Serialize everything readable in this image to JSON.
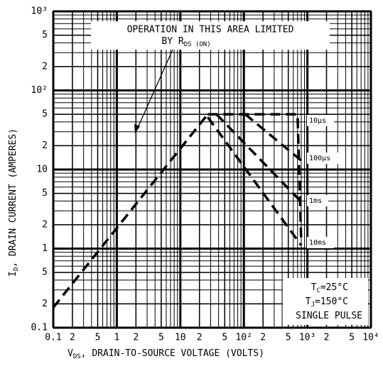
{
  "chart_data": {
    "type": "line",
    "xscale": "log",
    "yscale": "log",
    "grid": true,
    "minor_grid": true,
    "xlim": [
      0.1,
      10000
    ],
    "ylim": [
      0.1,
      1000
    ],
    "xticks": [
      0.1,
      {
        "value": 0.2,
        "label": "2"
      },
      {
        "value": 0.5,
        "label": "5"
      },
      1,
      {
        "value": 2,
        "label": "2"
      },
      {
        "value": 5,
        "label": "5"
      },
      10,
      {
        "value": 20,
        "label": "2"
      },
      {
        "value": 50,
        "label": "5"
      },
      {
        "value": 100,
        "label": "10²"
      },
      {
        "value": 200,
        "label": "2"
      },
      {
        "value": 500,
        "label": "5"
      },
      {
        "value": 1000,
        "label": "10³"
      },
      {
        "value": 2000,
        "label": "2"
      },
      {
        "value": 5000,
        "label": "5"
      },
      {
        "value": 10000,
        "label": "10⁴"
      }
    ],
    "yticks": [
      0.1,
      {
        "value": 0.2,
        "label": "2"
      },
      {
        "value": 0.5,
        "label": "5"
      },
      1,
      {
        "value": 2,
        "label": "2"
      },
      {
        "value": 5,
        "label": "5"
      },
      10,
      {
        "value": 20,
        "label": "2"
      },
      {
        "value": 50,
        "label": "5"
      },
      {
        "value": 100,
        "label": "10²"
      },
      {
        "value": 200,
        "label": "2"
      },
      {
        "value": 500,
        "label": "5"
      },
      {
        "value": 1000,
        "label": "10³"
      }
    ],
    "xlabel": {
      "symbol": "V",
      "sub": "DS",
      "text": ",  DRAIN-TO-SOURCE VOLTAGE (VOLTS)"
    },
    "ylabel": {
      "symbol": "I",
      "sub": "D",
      "text": ",  DRAIN CURRENT (AMPERES)"
    },
    "annotation": {
      "line1": "OPERATION IN THIS AREA LIMITED",
      "line2": "BY R",
      "line2_sub": "DS (ON)"
    },
    "conditions": [
      {
        "symbol": "T",
        "sub": "C",
        "text": "=25°C"
      },
      {
        "symbol": "T",
        "sub": "J",
        "text": "=150°C"
      },
      {
        "text": "SINGLE PULSE"
      }
    ],
    "color": "#000000",
    "series": [
      {
        "x": [
          0.1,
          27
        ],
        "values": [
          0.18,
          50
        ]
      },
      {
        "name": "10µs",
        "x": [
          27,
          700,
          800
        ],
        "values": [
          50,
          50,
          1.2
        ]
      },
      {
        "name": "100µs",
        "x": [
          105,
          800
        ],
        "values": [
          50,
          13
        ]
      },
      {
        "name": "1ms",
        "x": [
          37,
          800
        ],
        "values": [
          50,
          3.9
        ]
      },
      {
        "name": "10ms",
        "x": [
          27,
          800
        ],
        "values": [
          46,
          1.1
        ]
      }
    ]
  }
}
